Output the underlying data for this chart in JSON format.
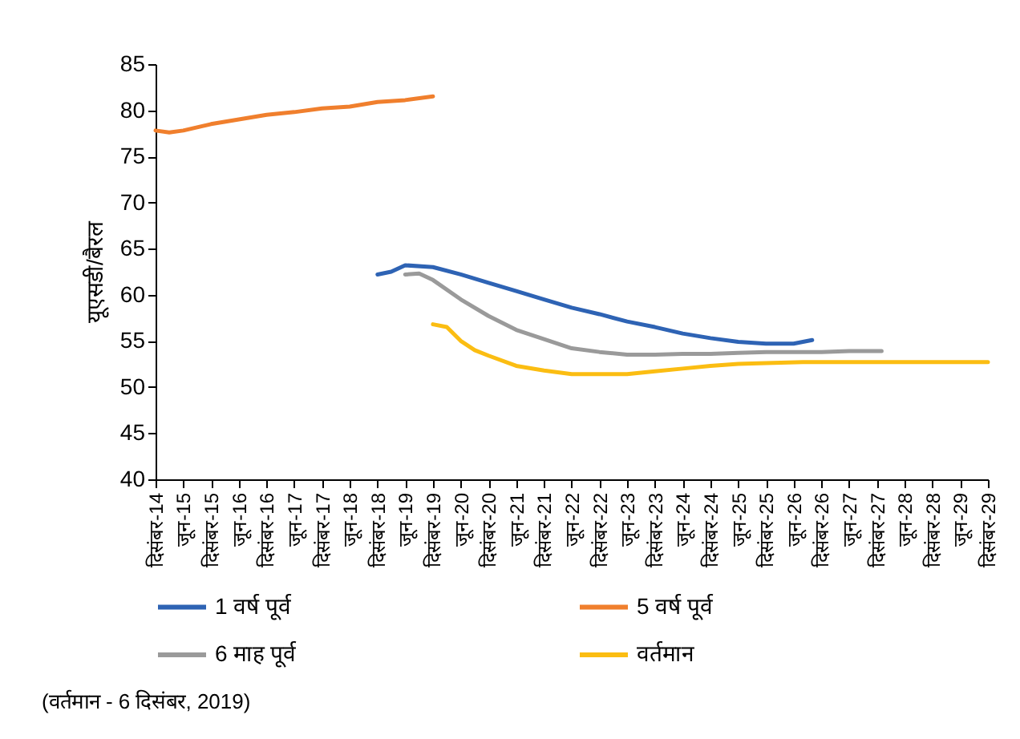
{
  "chart_data": {
    "type": "line",
    "ylabel": "यूएसडी/बैरल",
    "annotations": [
      "(वर्तमान - 6 दिसंबर, 2019)"
    ],
    "xlim": [
      "2014-12",
      "2029-12"
    ],
    "xticks": [
      {
        "value": "2014-12",
        "label": "दिसंबर-14"
      },
      {
        "value": "2015-06",
        "label": "जून-15"
      },
      {
        "value": "2015-12",
        "label": "दिसंबर-15"
      },
      {
        "value": "2016-06",
        "label": "जून-16"
      },
      {
        "value": "2016-12",
        "label": "दिसंबर-16"
      },
      {
        "value": "2017-06",
        "label": "जून-17"
      },
      {
        "value": "2017-12",
        "label": "दिसंबर-17"
      },
      {
        "value": "2018-06",
        "label": "जून-18"
      },
      {
        "value": "2018-12",
        "label": "दिसंबर-18"
      },
      {
        "value": "2019-06",
        "label": "जून-19"
      },
      {
        "value": "2019-12",
        "label": "दिसंबर-19"
      },
      {
        "value": "2020-06",
        "label": "जून-20"
      },
      {
        "value": "2020-12",
        "label": "दिसंबर-20"
      },
      {
        "value": "2021-06",
        "label": "जून-21"
      },
      {
        "value": "2021-12",
        "label": "दिसंबर-21"
      },
      {
        "value": "2022-06",
        "label": "जून-22"
      },
      {
        "value": "2022-12",
        "label": "दिसंबर-22"
      },
      {
        "value": "2023-06",
        "label": "जून-23"
      },
      {
        "value": "2023-12",
        "label": "दिसंबर-23"
      },
      {
        "value": "2024-06",
        "label": "जून-24"
      },
      {
        "value": "2024-12",
        "label": "दिसंबर-24"
      },
      {
        "value": "2025-06",
        "label": "जून-25"
      },
      {
        "value": "2025-12",
        "label": "दिसंबर-25"
      },
      {
        "value": "2026-06",
        "label": "जून-26"
      },
      {
        "value": "2026-12",
        "label": "दिसंबर-26"
      },
      {
        "value": "2027-06",
        "label": "जून-27"
      },
      {
        "value": "2027-12",
        "label": "दिसंबर-27"
      },
      {
        "value": "2028-06",
        "label": "जून-28"
      },
      {
        "value": "2028-12",
        "label": "दिसंबर-28"
      },
      {
        "value": "2029-06",
        "label": "जून-29"
      },
      {
        "value": "2029-12",
        "label": "दिसंबर-29"
      }
    ],
    "ylim": [
      40,
      85
    ],
    "yticks": [
      40,
      45,
      50,
      55,
      60,
      65,
      70,
      75,
      80,
      85
    ],
    "legend": "bottom",
    "line_style": "solid",
    "series": [
      {
        "name": "1 वर्ष पूर्व",
        "color": "#2e63b4",
        "x": [
          "2018-12",
          "2019-03",
          "2019-06",
          "2019-12",
          "2020-06",
          "2020-12",
          "2021-06",
          "2021-12",
          "2022-06",
          "2022-12",
          "2023-06",
          "2023-12",
          "2024-06",
          "2024-12",
          "2025-06",
          "2025-12",
          "2026-06",
          "2026-10"
        ],
        "values": [
          62.2,
          62.5,
          63.2,
          63.0,
          62.2,
          61.3,
          60.4,
          59.5,
          58.6,
          57.9,
          57.1,
          56.5,
          55.8,
          55.3,
          54.9,
          54.7,
          54.7,
          55.1
        ]
      },
      {
        "name": "5 वर्ष पूर्व",
        "color": "#f07f2d",
        "x": [
          "2014-12",
          "2015-03",
          "2015-06",
          "2015-12",
          "2016-06",
          "2016-12",
          "2017-06",
          "2017-12",
          "2018-06",
          "2018-12",
          "2019-06",
          "2019-12"
        ],
        "values": [
          77.8,
          77.6,
          77.8,
          78.5,
          79.0,
          79.5,
          79.8,
          80.2,
          80.4,
          80.9,
          81.1,
          81.5
        ]
      },
      {
        "name": "6 माह पूर्व",
        "color": "#9a9a9a",
        "x": [
          "2019-06",
          "2019-09",
          "2019-12",
          "2020-06",
          "2020-12",
          "2021-06",
          "2021-12",
          "2022-06",
          "2022-12",
          "2023-06",
          "2023-12",
          "2024-06",
          "2024-12",
          "2025-06",
          "2025-12",
          "2026-06",
          "2026-12",
          "2027-06",
          "2028-01"
        ],
        "values": [
          62.2,
          62.3,
          61.6,
          59.5,
          57.7,
          56.2,
          55.2,
          54.2,
          53.8,
          53.5,
          53.5,
          53.6,
          53.6,
          53.7,
          53.8,
          53.8,
          53.8,
          53.9,
          53.9
        ]
      },
      {
        "name": "वर्तमान",
        "color": "#fbbd12",
        "x": [
          "2019-12",
          "2020-03",
          "2020-06",
          "2020-09",
          "2020-12",
          "2021-06",
          "2021-12",
          "2022-06",
          "2022-12",
          "2023-06",
          "2023-12",
          "2024-06",
          "2024-12",
          "2025-06",
          "2025-12",
          "2026-08",
          "2029-12"
        ],
        "values": [
          56.8,
          56.5,
          55.0,
          54.0,
          53.4,
          52.3,
          51.8,
          51.4,
          51.4,
          51.4,
          51.7,
          52.0,
          52.3,
          52.5,
          52.6,
          52.7,
          52.7
        ]
      }
    ]
  }
}
